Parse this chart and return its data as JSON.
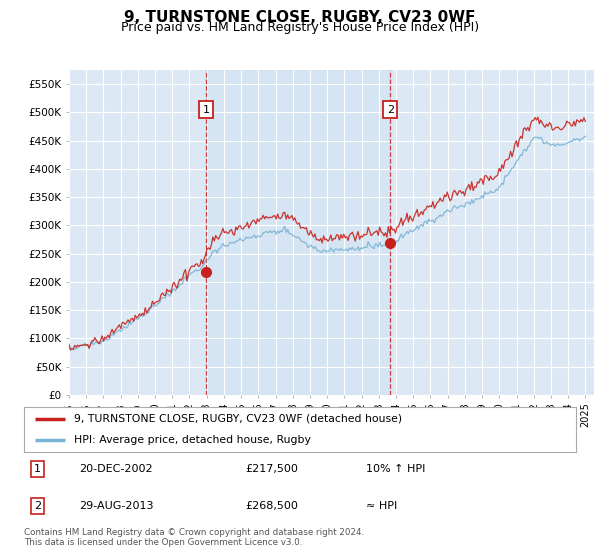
{
  "title": "9, TURNSTONE CLOSE, RUGBY, CV23 0WF",
  "subtitle": "Price paid vs. HM Land Registry's House Price Index (HPI)",
  "ylabel_ticks": [
    "£0",
    "£50K",
    "£100K",
    "£150K",
    "£200K",
    "£250K",
    "£300K",
    "£350K",
    "£400K",
    "£450K",
    "£500K",
    "£550K"
  ],
  "ytick_values": [
    0,
    50000,
    100000,
    150000,
    200000,
    250000,
    300000,
    350000,
    400000,
    450000,
    500000,
    550000
  ],
  "ylim": [
    0,
    575000
  ],
  "xlim_start": 1995.0,
  "xlim_end": 2025.5,
  "xtick_years": [
    1995,
    1996,
    1997,
    1998,
    1999,
    2000,
    2001,
    2002,
    2003,
    2004,
    2005,
    2006,
    2007,
    2008,
    2009,
    2010,
    2011,
    2012,
    2013,
    2014,
    2015,
    2016,
    2017,
    2018,
    2019,
    2020,
    2021,
    2022,
    2023,
    2024,
    2025
  ],
  "sale1_x": 2002.97,
  "sale1_y": 217500,
  "sale1_label": "1",
  "sale2_x": 2013.66,
  "sale2_y": 268500,
  "sale2_label": "2",
  "hpi_line_color": "#7ab3d4",
  "property_line_color": "#c8201a",
  "sale_marker_color": "#c8201a",
  "vline_color": "#c8201a",
  "background_color": "#dce9f5",
  "shade_color": "#c8dff0",
  "legend_line1": "9, TURNSTONE CLOSE, RUGBY, CV23 0WF (detached house)",
  "legend_line2": "HPI: Average price, detached house, Rugby",
  "table_row1_num": "1",
  "table_row1_date": "20-DEC-2002",
  "table_row1_price": "£217,500",
  "table_row1_hpi": "10% ↑ HPI",
  "table_row2_num": "2",
  "table_row2_date": "29-AUG-2013",
  "table_row2_price": "£268,500",
  "table_row2_hpi": "≈ HPI",
  "footer": "Contains HM Land Registry data © Crown copyright and database right 2024.\nThis data is licensed under the Open Government Licence v3.0.",
  "title_fontsize": 11,
  "subtitle_fontsize": 9
}
